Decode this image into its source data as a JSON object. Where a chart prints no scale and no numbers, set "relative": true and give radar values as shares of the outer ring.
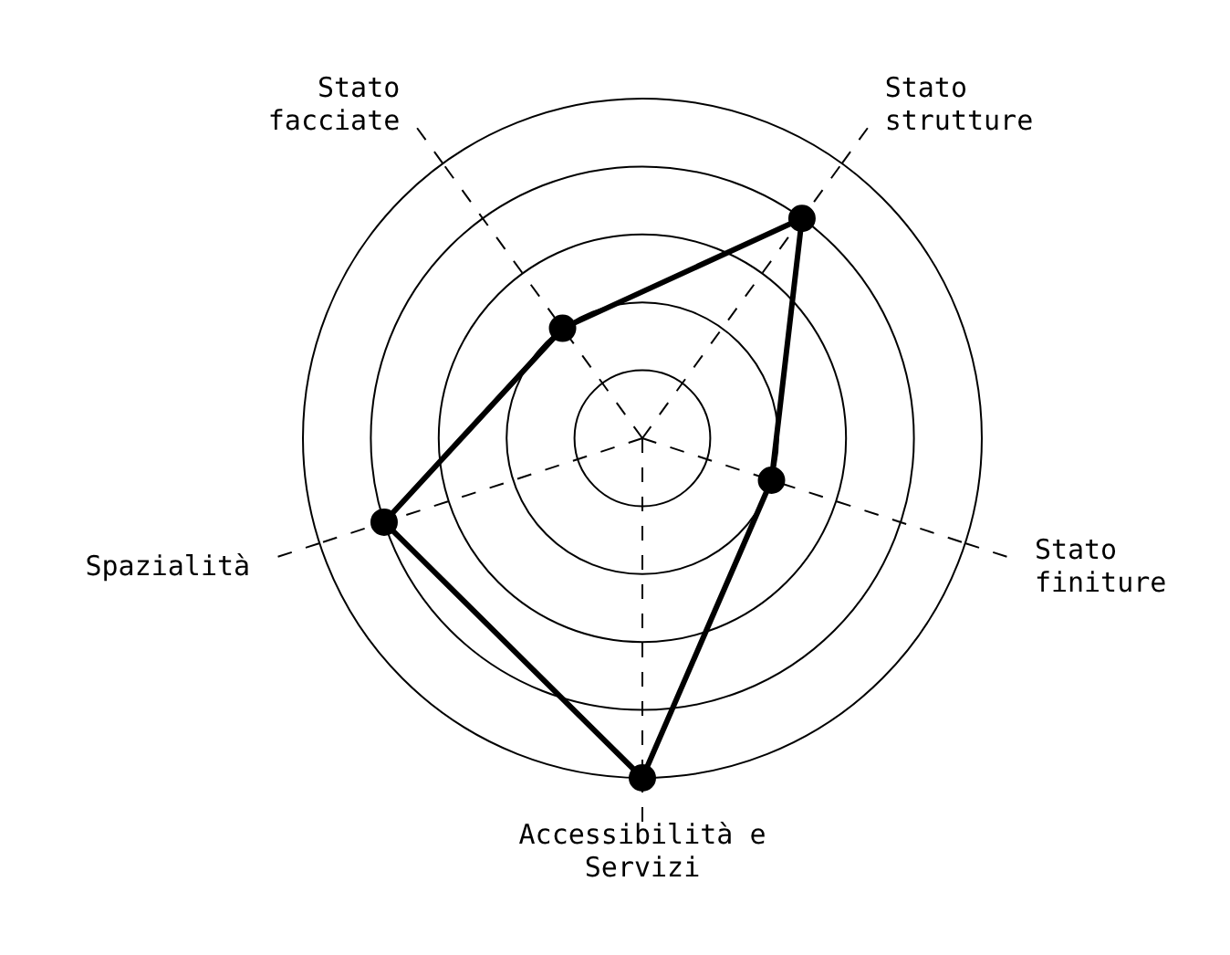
{
  "chart_data": {
    "type": "radar",
    "relative": true,
    "grid": true,
    "marker": "circle",
    "line_style": "solid",
    "categories": [
      "Stato\nstrutture",
      "Stato\nfiniture",
      "Accessibilità e\nServizi",
      "Spazialità",
      "Stato\nfacciate"
    ],
    "series": [
      {
        "color": "#000000",
        "values": [
          0.8,
          0.4,
          1,
          0.8,
          0.4
        ]
      }
    ]
  }
}
